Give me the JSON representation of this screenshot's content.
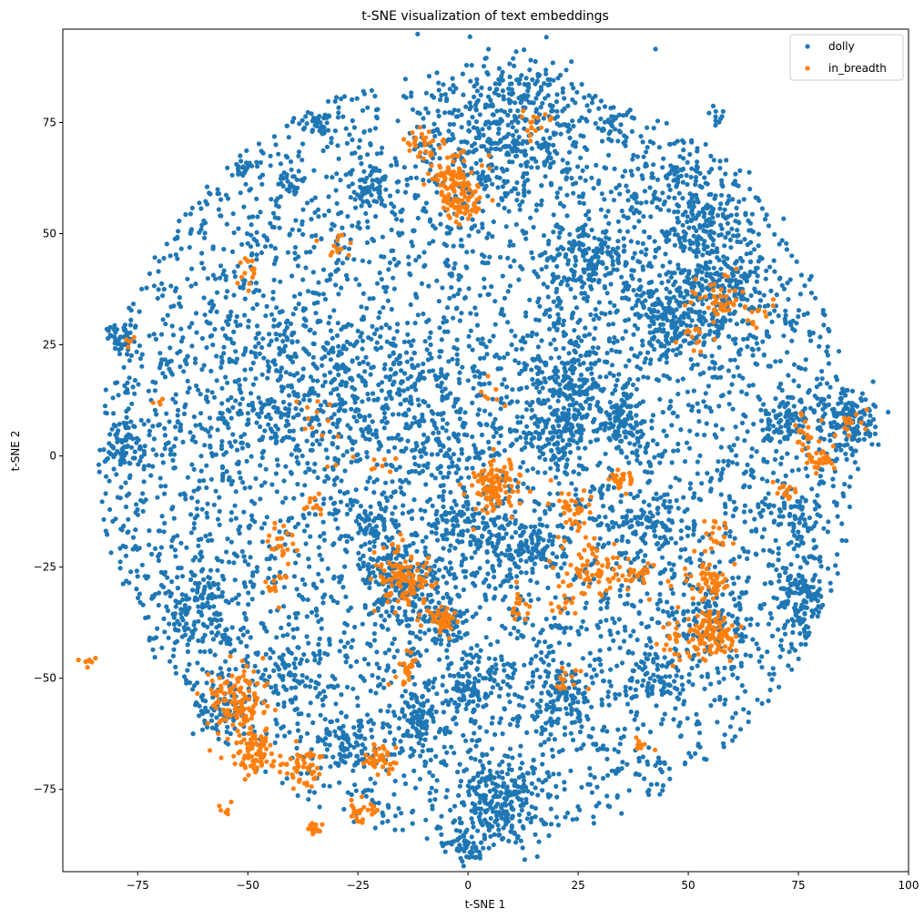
{
  "chart_data": {
    "type": "scatter",
    "title": "t-SNE visualization of text embeddings",
    "xlabel": "t-SNE 1",
    "ylabel": "t-SNE 2",
    "xlim": [
      -92,
      100
    ],
    "ylim": [
      -93.5,
      96
    ],
    "x_ticks": [
      -75,
      -50,
      -25,
      0,
      25,
      50,
      75,
      100
    ],
    "y_ticks": [
      -75,
      -50,
      -25,
      0,
      25,
      50,
      75
    ],
    "grid": false,
    "legend_position": "top-right",
    "series": [
      {
        "name": "dolly",
        "color": "#1f77b4",
        "count_estimate": 9000,
        "disc": {
          "center": [
            2,
            0
          ],
          "rx": 86,
          "ry": 87
        },
        "clusters": [
          {
            "center": [
              10,
              73
            ],
            "spread": 9,
            "weight": 6
          },
          {
            "center": [
              50,
              55
            ],
            "spread": 6,
            "weight": 3
          },
          {
            "center": [
              57,
              38
            ],
            "spread": 6,
            "weight": 4
          },
          {
            "center": [
              45,
              30
            ],
            "spread": 5,
            "weight": 3
          },
          {
            "center": [
              27,
              45
            ],
            "spread": 5,
            "weight": 3
          },
          {
            "center": [
              24,
              17
            ],
            "spread": 5,
            "weight": 3
          },
          {
            "center": [
              20,
              5
            ],
            "spread": 4,
            "weight": 2
          },
          {
            "center": [
              35,
              7
            ],
            "spread": 3,
            "weight": 2
          },
          {
            "center": [
              86,
              8
            ],
            "spread": 3.5,
            "weight": 2.5
          },
          {
            "center": [
              72,
              8
            ],
            "spread": 2.5,
            "weight": 1
          },
          {
            "center": [
              75,
              -13
            ],
            "spread": 2.5,
            "weight": 1
          },
          {
            "center": [
              76,
              -30
            ],
            "spread": 2,
            "weight": 0.8
          },
          {
            "center": [
              75,
              -36
            ],
            "spread": 2,
            "weight": 0.8
          },
          {
            "center": [
              -78,
              3
            ],
            "spread": 2.5,
            "weight": 1
          },
          {
            "center": [
              -78,
              26
            ],
            "spread": 2,
            "weight": 0.8
          },
          {
            "center": [
              -34,
              75
            ],
            "spread": 1.5,
            "weight": 0.6
          },
          {
            "center": [
              -22,
              60
            ],
            "spread": 3,
            "weight": 1.2
          },
          {
            "center": [
              -40,
              62
            ],
            "spread": 1.5,
            "weight": 0.4
          },
          {
            "center": [
              -51,
              65
            ],
            "spread": 1,
            "weight": 0.3
          },
          {
            "center": [
              33,
              74
            ],
            "spread": 1.8,
            "weight": 0.5
          },
          {
            "center": [
              57,
              77
            ],
            "spread": 1,
            "weight": 0.3
          },
          {
            "center": [
              -40,
              14
            ],
            "spread": 10,
            "weight": 5
          },
          {
            "center": [
              -15,
              10
            ],
            "spread": 8,
            "weight": 3
          },
          {
            "center": [
              -62,
              -33
            ],
            "spread": 5,
            "weight": 2
          },
          {
            "center": [
              -15,
              -30
            ],
            "spread": 5,
            "weight": 3
          },
          {
            "center": [
              7,
              -78
            ],
            "spread": 5,
            "weight": 4
          },
          {
            "center": [
              -1,
              -88
            ],
            "spread": 2,
            "weight": 0.8
          },
          {
            "center": [
              0,
              -52
            ],
            "spread": 4,
            "weight": 2
          },
          {
            "center": [
              22,
              -55
            ],
            "spread": 4,
            "weight": 2
          },
          {
            "center": [
              -12,
              -60
            ],
            "spread": 3,
            "weight": 1.5
          },
          {
            "center": [
              -28,
              -65
            ],
            "spread": 3,
            "weight": 1.2
          },
          {
            "center": [
              -5,
              -36
            ],
            "spread": 3,
            "weight": 1.2
          },
          {
            "center": [
              5,
              -20
            ],
            "spread": 4,
            "weight": 1.5
          },
          {
            "center": [
              15,
              -20
            ],
            "spread": 3,
            "weight": 1.2
          },
          {
            "center": [
              -40,
              -50
            ],
            "spread": 4,
            "weight": 1.2
          },
          {
            "center": [
              -55,
              -57
            ],
            "spread": 3,
            "weight": 1.2
          },
          {
            "center": [
              56,
              -36
            ],
            "spread": 5,
            "weight": 2
          },
          {
            "center": [
              44,
              -50
            ],
            "spread": 3,
            "weight": 1
          },
          {
            "center": [
              -22,
              -15
            ],
            "spread": 3,
            "weight": 1
          },
          {
            "center": [
              -4,
              -15
            ],
            "spread": 3,
            "weight": 1
          },
          {
            "center": [
              40,
              -15
            ],
            "spread": 4,
            "weight": 1.5
          }
        ]
      },
      {
        "name": "in_breadth",
        "color": "#ff7f0e",
        "count_estimate": 1500,
        "clusters": [
          {
            "center": [
              -14,
              -28
            ],
            "spread": 3.5,
            "weight": 6
          },
          {
            "center": [
              6,
              -7
            ],
            "spread": 2.8,
            "weight": 5
          },
          {
            "center": [
              -6,
              -37
            ],
            "spread": 1.6,
            "weight": 2.5
          },
          {
            "center": [
              -52,
              -55
            ],
            "spread": 3.5,
            "weight": 5
          },
          {
            "center": [
              -49,
              -66
            ],
            "spread": 2.5,
            "weight": 4
          },
          {
            "center": [
              -38,
              -70
            ],
            "spread": 2.5,
            "weight": 2.5
          },
          {
            "center": [
              -20,
              -68
            ],
            "spread": 1.8,
            "weight": 1.5
          },
          {
            "center": [
              -24,
              -80
            ],
            "spread": 1.5,
            "weight": 1
          },
          {
            "center": [
              -35,
              -84
            ],
            "spread": 0.8,
            "weight": 0.5
          },
          {
            "center": [
              -14,
              -48
            ],
            "spread": 2,
            "weight": 1.2
          },
          {
            "center": [
              -42,
              -20
            ],
            "spread": 1.8,
            "weight": 1
          },
          {
            "center": [
              -35,
              -11
            ],
            "spread": 1.3,
            "weight": 0.8
          },
          {
            "center": [
              -44,
              -30
            ],
            "spread": 1.5,
            "weight": 0.6
          },
          {
            "center": [
              -3,
              62
            ],
            "spread": 2.8,
            "weight": 4
          },
          {
            "center": [
              -1,
              56
            ],
            "spread": 2,
            "weight": 1.5
          },
          {
            "center": [
              -10,
              70
            ],
            "spread": 2,
            "weight": 1
          },
          {
            "center": [
              15,
              75
            ],
            "spread": 2,
            "weight": 0.8
          },
          {
            "center": [
              56,
              -40
            ],
            "spread": 3,
            "weight": 4
          },
          {
            "center": [
              54,
              -28
            ],
            "spread": 2.5,
            "weight": 2
          },
          {
            "center": [
              48,
              -42
            ],
            "spread": 3,
            "weight": 1.5
          },
          {
            "center": [
              57,
              -18
            ],
            "spread": 2,
            "weight": 1
          },
          {
            "center": [
              28,
              -25
            ],
            "spread": 4,
            "weight": 3
          },
          {
            "center": [
              24,
              -12
            ],
            "spread": 2.5,
            "weight": 1.5
          },
          {
            "center": [
              38,
              -26
            ],
            "spread": 2,
            "weight": 1.5
          },
          {
            "center": [
              22,
              -33
            ],
            "spread": 2,
            "weight": 1
          },
          {
            "center": [
              35,
              -5
            ],
            "spread": 1.5,
            "weight": 0.8
          },
          {
            "center": [
              80,
              -1
            ],
            "spread": 1.5,
            "weight": 1
          },
          {
            "center": [
              77,
              5
            ],
            "spread": 2,
            "weight": 0.8
          },
          {
            "center": [
              87,
              7
            ],
            "spread": 2,
            "weight": 0.8
          },
          {
            "center": [
              72,
              -8
            ],
            "spread": 1.5,
            "weight": 0.6
          },
          {
            "center": [
              57,
              35
            ],
            "spread": 3,
            "weight": 1.5
          },
          {
            "center": [
              67,
              32
            ],
            "spread": 2,
            "weight": 0.8
          },
          {
            "center": [
              50,
              27
            ],
            "spread": 2,
            "weight": 0.6
          },
          {
            "center": [
              23,
              -50
            ],
            "spread": 2,
            "weight": 0.8
          },
          {
            "center": [
              12,
              -33
            ],
            "spread": 1.5,
            "weight": 0.6
          },
          {
            "center": [
              -87,
              -46
            ],
            "spread": 1,
            "weight": 0.4
          },
          {
            "center": [
              -77,
              26
            ],
            "spread": 0.8,
            "weight": 0.3
          },
          {
            "center": [
              -70,
              12
            ],
            "spread": 0.8,
            "weight": 0.3
          },
          {
            "center": [
              -50,
              42
            ],
            "spread": 2,
            "weight": 0.5
          },
          {
            "center": [
              -30,
              47
            ],
            "spread": 1.5,
            "weight": 0.4
          },
          {
            "center": [
              -35,
              10
            ],
            "spread": 2,
            "weight": 0.5
          },
          {
            "center": [
              -30,
              0
            ],
            "spread": 2,
            "weight": 0.4
          },
          {
            "center": [
              -20,
              0
            ],
            "spread": 2,
            "weight": 0.4
          },
          {
            "center": [
              5,
              14
            ],
            "spread": 2.5,
            "weight": 0.5
          },
          {
            "center": [
              -55,
              -80
            ],
            "spread": 1,
            "weight": 0.2
          },
          {
            "center": [
              40,
              -65
            ],
            "spread": 1,
            "weight": 0.2
          }
        ]
      }
    ]
  }
}
